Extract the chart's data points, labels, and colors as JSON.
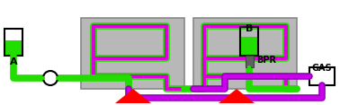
{
  "bg_color": "#ffffff",
  "green": "#22dd00",
  "magenta": "#dd00dd",
  "purple_outer": "#9900bb",
  "purple_inner": "#cc00ee",
  "gray_box": "#b8b8b8",
  "gray_box_edge": "#888888",
  "red": "#ff0000",
  "dark_gray": "#606060",
  "lw_outer": 5.5,
  "lw_inner": 3.0,
  "label_A": "A",
  "label_B": "B",
  "label_BPR": "BPR",
  "label_GAS": "GAS",
  "figsize": [
    3.78,
    1.17
  ],
  "dpi": 100
}
